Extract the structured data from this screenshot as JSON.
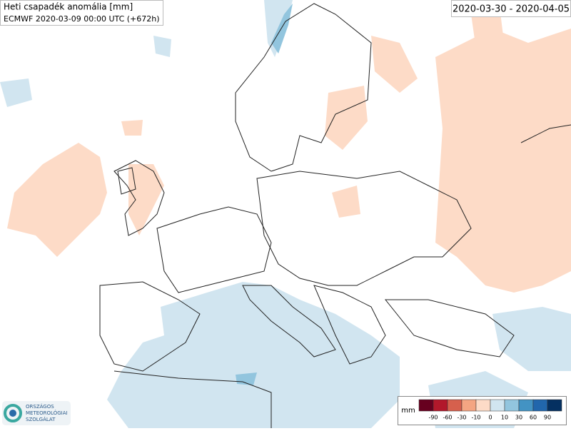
{
  "header": {
    "title": "Heti csapadék anomália [mm]",
    "subtitle": "ECMWF 2020-03-09 00:00 UTC (+672h)",
    "period": "2020-03-30 - 2020-04-05"
  },
  "logo": {
    "lines": [
      "ORSZÁGOS",
      "METEOROLÓGIAI",
      "SZOLGÁLAT"
    ]
  },
  "legend": {
    "unit": "mm",
    "colors": [
      "#67001f",
      "#b2182b",
      "#d6604d",
      "#f4a582",
      "#fddbc7",
      "#d1e5f0",
      "#92c5de",
      "#4393c3",
      "#2166ac",
      "#053061"
    ],
    "ticks": [
      -90,
      -60,
      -30,
      -10,
      0,
      10,
      30,
      60,
      90
    ]
  }
}
